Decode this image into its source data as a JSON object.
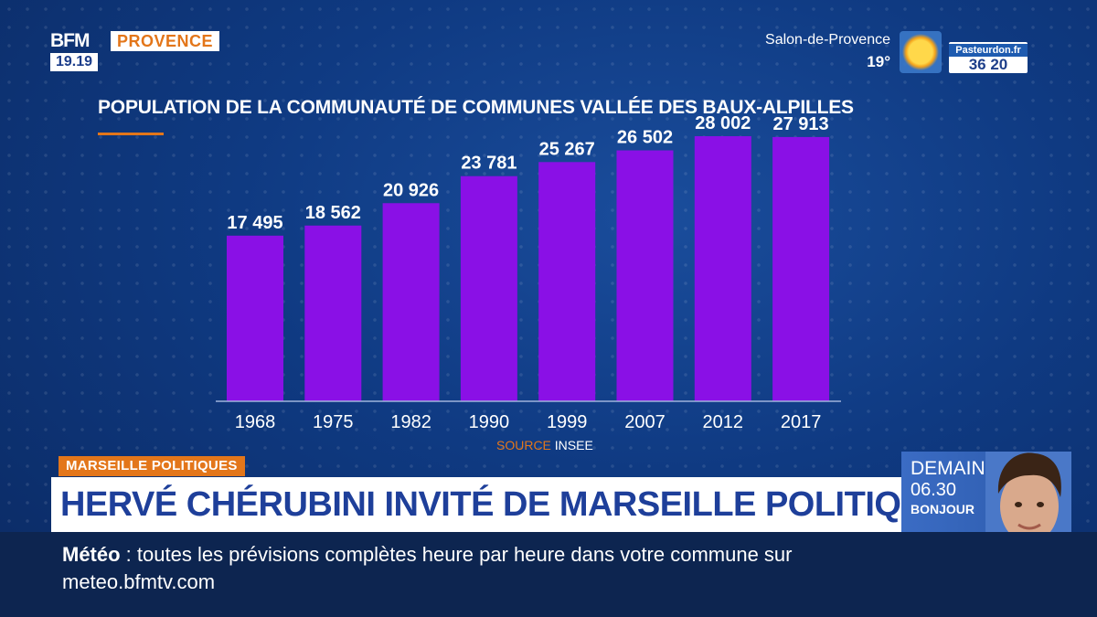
{
  "logo": {
    "brand": "BFM",
    "region": "PROVENCE",
    "time": "19.19"
  },
  "weather": {
    "city": "Salon-de-Provence",
    "temp": "19°"
  },
  "promo_badge": {
    "line1": "Pasteurdon.fr",
    "line2": "36 20"
  },
  "chart_data": {
    "type": "bar",
    "title": "POPULATION DE LA COMMUNAUTÉ DE COMMUNES VALLÉE DES BAUX-ALPILLES",
    "categories": [
      "1968",
      "1975",
      "1982",
      "1990",
      "1999",
      "2007",
      "2012",
      "2017"
    ],
    "values": [
      17495,
      18562,
      20926,
      23781,
      25267,
      26502,
      28002,
      27913
    ],
    "value_labels": [
      "17 495",
      "18 562",
      "20 926",
      "23 781",
      "25 267",
      "26 502",
      "28 002",
      "27 913"
    ],
    "xlabel": "",
    "ylabel": "",
    "bar_color": "#8a10e6"
  },
  "source": {
    "label": "SOURCE",
    "value": "INSEE"
  },
  "lower_third": {
    "kicker": "MARSEILLE POLITIQUES",
    "headline": "HERVÉ CHÉRUBINI INVITÉ DE MARSEILLE POLITIQUES"
  },
  "next_show": {
    "line1": "DEMAIN",
    "line2": "06.30",
    "line3": "BONJOUR"
  },
  "ticker": {
    "label": "Météo",
    "text": "toutes les prévisions complètes heure par heure dans votre commune sur meteo.bfmtv.com"
  },
  "colors": {
    "accent": "#e3761a",
    "headline": "#1e3f9a"
  }
}
